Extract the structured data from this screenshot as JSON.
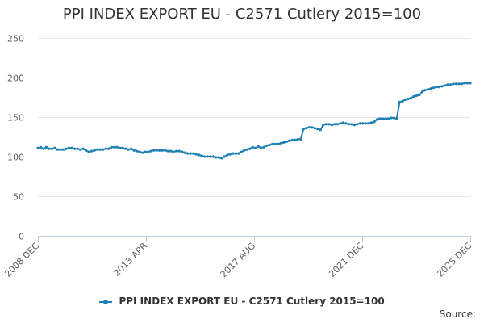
{
  "chart_data": {
    "type": "line",
    "title": "PPI INDEX EXPORT EU - C2571 Cutlery 2015=100",
    "xlabel": "",
    "ylabel": "",
    "ylim": [
      0,
      250
    ],
    "yticks": [
      0,
      50,
      100,
      150,
      200,
      250
    ],
    "x_ticks": [
      "2008 DEC",
      "2013 APR",
      "2017 AUG",
      "2021 DEC",
      "2025 DEC"
    ],
    "x_start": "2008 DEC",
    "x_end": "2025 DEC",
    "grid": true,
    "legend_position": "bottom",
    "color": "#1f80b4",
    "series": [
      {
        "name": "PPI INDEX EXPORT EU - C2571 Cutlery 2015=100",
        "points": [
          [
            0,
            111
          ],
          [
            2,
            112
          ],
          [
            4,
            110
          ],
          [
            6,
            112
          ],
          [
            8,
            110
          ],
          [
            10,
            110
          ],
          [
            12,
            111
          ],
          [
            14,
            109
          ],
          [
            16,
            109
          ],
          [
            18,
            109
          ],
          [
            20,
            110
          ],
          [
            22,
            111
          ],
          [
            24,
            111
          ],
          [
            26,
            110
          ],
          [
            28,
            110
          ],
          [
            30,
            109
          ],
          [
            32,
            110
          ],
          [
            34,
            108
          ],
          [
            36,
            106
          ],
          [
            38,
            107
          ],
          [
            40,
            108
          ],
          [
            42,
            109
          ],
          [
            44,
            109
          ],
          [
            46,
            109
          ],
          [
            48,
            110
          ],
          [
            50,
            110
          ],
          [
            52,
            112
          ],
          [
            54,
            112
          ],
          [
            56,
            112
          ],
          [
            58,
            111
          ],
          [
            60,
            111
          ],
          [
            62,
            110
          ],
          [
            64,
            109
          ],
          [
            66,
            110
          ],
          [
            68,
            108
          ],
          [
            70,
            107
          ],
          [
            72,
            106
          ],
          [
            74,
            105
          ],
          [
            76,
            106
          ],
          [
            78,
            106
          ],
          [
            80,
            107
          ],
          [
            82,
            108
          ],
          [
            84,
            108
          ],
          [
            86,
            108
          ],
          [
            88,
            108
          ],
          [
            90,
            108
          ],
          [
            92,
            107
          ],
          [
            94,
            107
          ],
          [
            96,
            106
          ],
          [
            98,
            107
          ],
          [
            100,
            107
          ],
          [
            102,
            106
          ],
          [
            104,
            105
          ],
          [
            106,
            104
          ],
          [
            108,
            104
          ],
          [
            110,
            104
          ],
          [
            112,
            103
          ],
          [
            114,
            102
          ],
          [
            116,
            101
          ],
          [
            118,
            100
          ],
          [
            120,
            100
          ],
          [
            122,
            100
          ],
          [
            124,
            100
          ],
          [
            126,
            99
          ],
          [
            128,
            99
          ],
          [
            130,
            98
          ],
          [
            132,
            100
          ],
          [
            134,
            102
          ],
          [
            136,
            103
          ],
          [
            138,
            104
          ],
          [
            140,
            104
          ],
          [
            142,
            104
          ],
          [
            144,
            106
          ],
          [
            146,
            108
          ],
          [
            148,
            109
          ],
          [
            150,
            110
          ],
          [
            152,
            112
          ],
          [
            154,
            111
          ],
          [
            156,
            113
          ],
          [
            158,
            111
          ],
          [
            160,
            112
          ],
          [
            162,
            114
          ],
          [
            164,
            115
          ],
          [
            166,
            116
          ],
          [
            168,
            116
          ],
          [
            170,
            116
          ],
          [
            172,
            117
          ],
          [
            174,
            118
          ],
          [
            176,
            119
          ],
          [
            178,
            120
          ],
          [
            180,
            121
          ],
          [
            182,
            121
          ],
          [
            184,
            122
          ],
          [
            186,
            122
          ],
          [
            188,
            135
          ],
          [
            190,
            136
          ],
          [
            192,
            137
          ],
          [
            194,
            137
          ],
          [
            196,
            136
          ],
          [
            198,
            135
          ],
          [
            200,
            134
          ],
          [
            202,
            140
          ],
          [
            204,
            141
          ],
          [
            206,
            141
          ],
          [
            208,
            140
          ],
          [
            210,
            141
          ],
          [
            212,
            141
          ],
          [
            214,
            142
          ],
          [
            216,
            143
          ],
          [
            218,
            142
          ],
          [
            220,
            141
          ],
          [
            222,
            141
          ],
          [
            224,
            140
          ],
          [
            226,
            141
          ],
          [
            228,
            142
          ],
          [
            230,
            142
          ],
          [
            232,
            142
          ],
          [
            234,
            142
          ],
          [
            236,
            143
          ],
          [
            238,
            144
          ],
          [
            240,
            147
          ],
          [
            242,
            148
          ],
          [
            244,
            148
          ],
          [
            246,
            148
          ],
          [
            248,
            148
          ],
          [
            250,
            149
          ],
          [
            252,
            149
          ],
          [
            254,
            148
          ],
          [
            256,
            169
          ],
          [
            258,
            170
          ],
          [
            260,
            172
          ],
          [
            262,
            173
          ],
          [
            264,
            174
          ],
          [
            266,
            176
          ],
          [
            268,
            177
          ],
          [
            270,
            178
          ],
          [
            272,
            182
          ],
          [
            274,
            184
          ],
          [
            276,
            185
          ],
          [
            278,
            186
          ],
          [
            280,
            187
          ],
          [
            282,
            188
          ],
          [
            284,
            188
          ],
          [
            286,
            189
          ],
          [
            288,
            190
          ],
          [
            290,
            191
          ],
          [
            292,
            191
          ],
          [
            294,
            192
          ],
          [
            296,
            192
          ],
          [
            298,
            192
          ],
          [
            300,
            192
          ],
          [
            302,
            193
          ],
          [
            304,
            193
          ],
          [
            306,
            193
          ]
        ]
      }
    ]
  },
  "source_label": "Source:"
}
